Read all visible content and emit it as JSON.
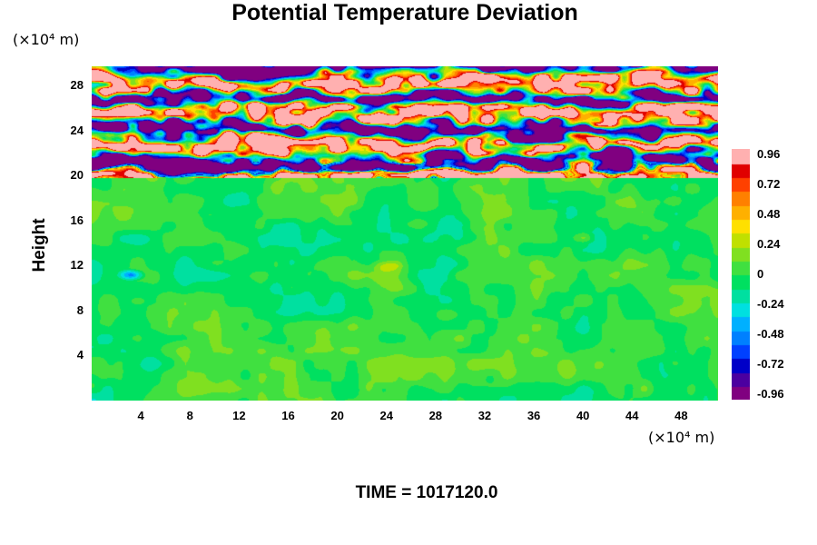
{
  "chart_data": {
    "type": "heatmap",
    "title": "Potential Temperature Deviation",
    "xlabel": "",
    "ylabel": "Height",
    "x_unit": "(×10⁴ m)",
    "y_unit": "(×10⁴ m)",
    "xlim": [
      0,
      51
    ],
    "ylim": [
      0,
      29.7
    ],
    "x_ticks": [
      "4",
      "8",
      "12",
      "16",
      "20",
      "24",
      "28",
      "32",
      "36",
      "40",
      "44",
      "48"
    ],
    "y_ticks": [
      "4",
      "8",
      "12",
      "16",
      "20",
      "24",
      "28"
    ],
    "colorbar": {
      "ticks": [
        "0.96",
        "0.72",
        "0.48",
        "0.24",
        "0",
        "-0.24",
        "-0.48",
        "-0.72",
        "-0.96"
      ],
      "range": [
        -0.96,
        0.96
      ],
      "colors": [
        "#800080",
        "#4b00a0",
        "#0000c8",
        "#0040ff",
        "#0080ff",
        "#00b0ff",
        "#00e0e0",
        "#00e0a0",
        "#00e060",
        "#40e040",
        "#80e020",
        "#c0e000",
        "#ffe000",
        "#ffb000",
        "#ff8000",
        "#ff4000",
        "#e00000",
        "#ffb0b0"
      ]
    },
    "stable_layer_base": 19.8,
    "notes_visible": "",
    "footer": "TIME = 1017120.0"
  },
  "labels": {
    "title": "Potential Temperature Deviation",
    "y_unit": "(×10⁴ m)",
    "x_unit": "(×10⁴ m)",
    "ylabel": "Height",
    "time": "TIME = 1017120.0"
  }
}
